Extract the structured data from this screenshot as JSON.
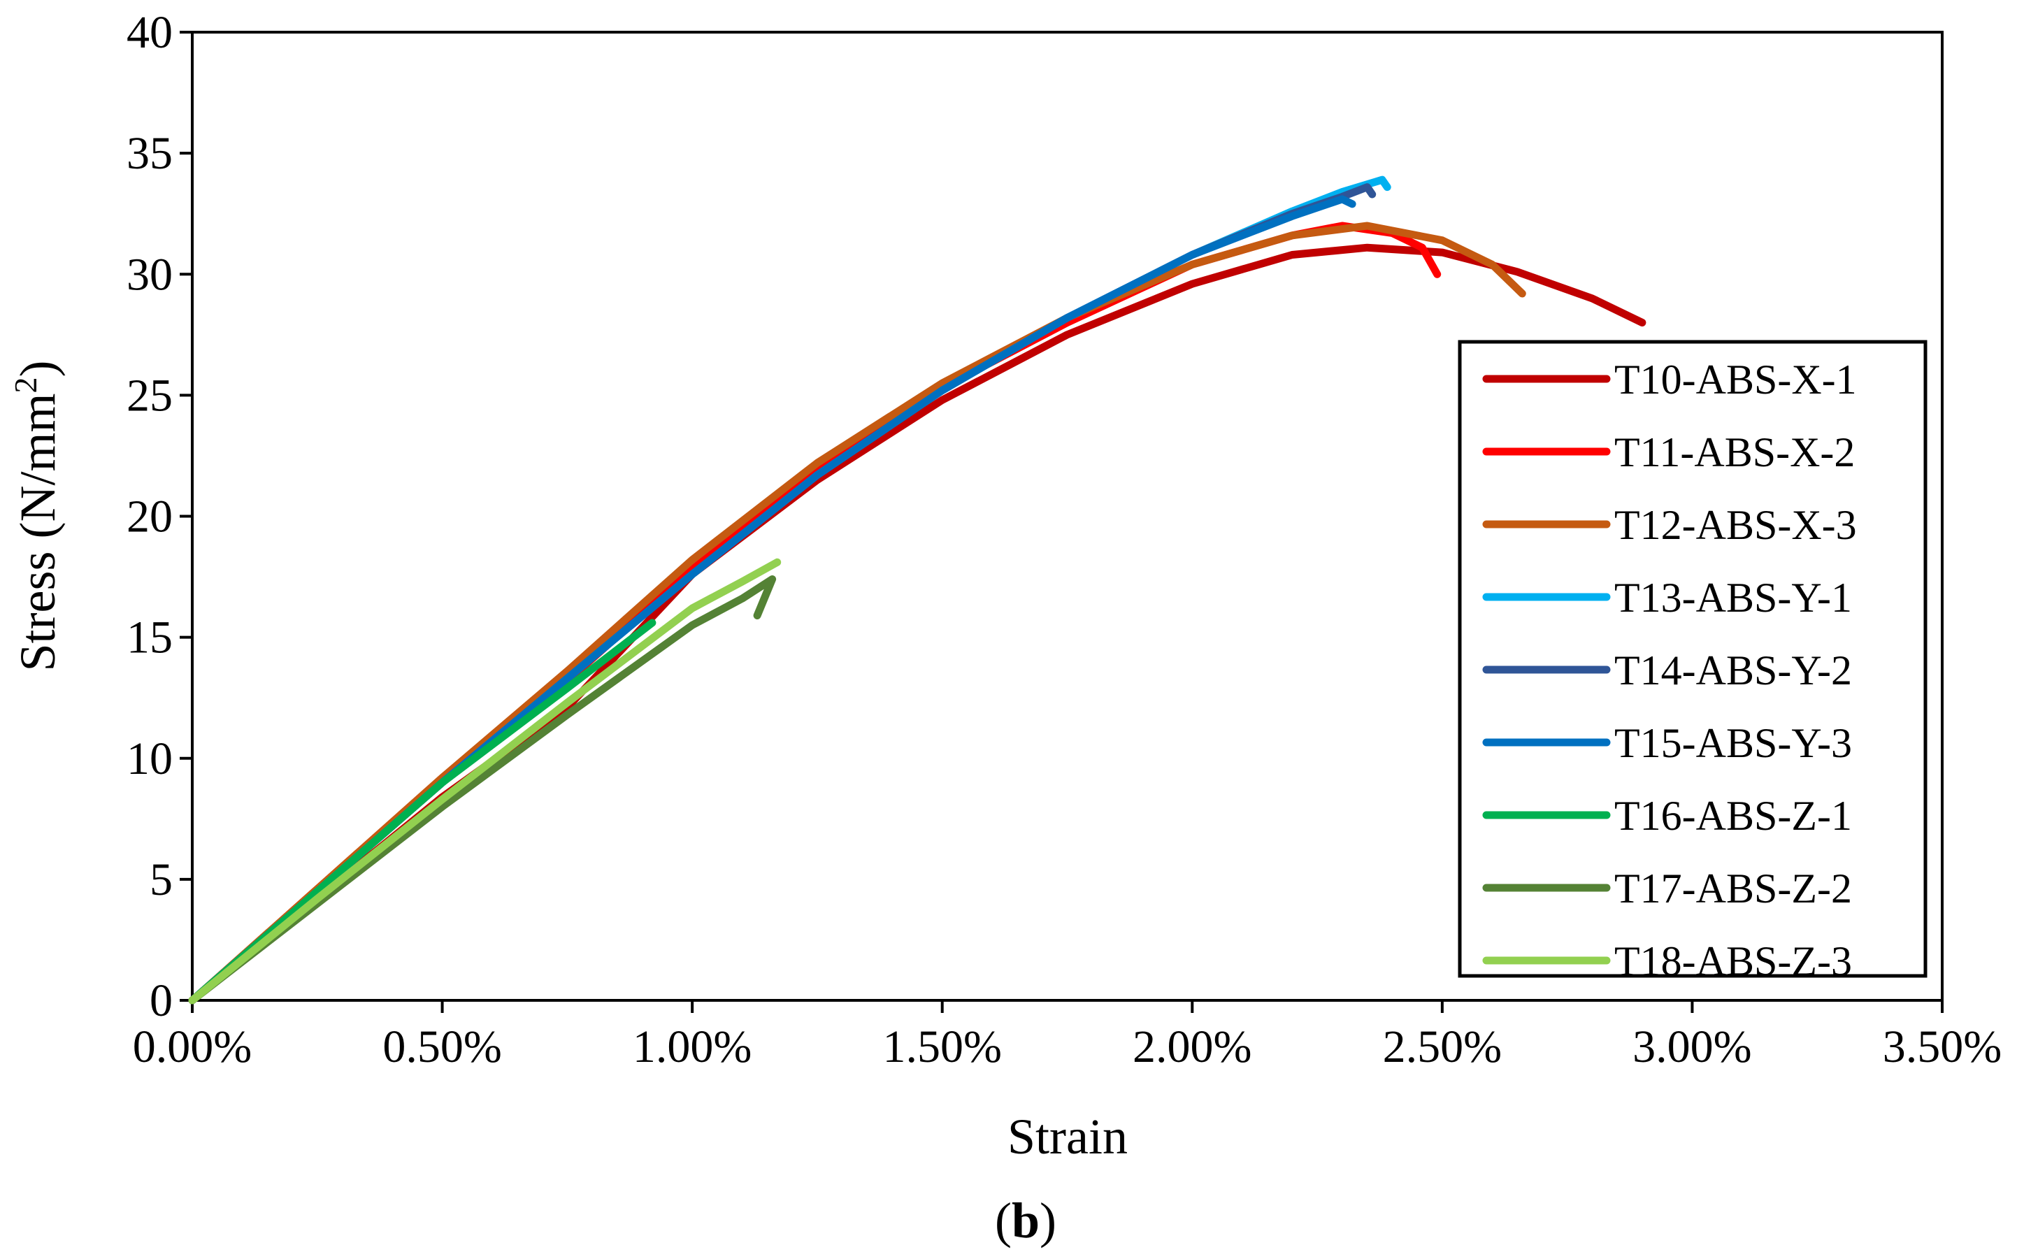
{
  "chart_data": {
    "type": "line",
    "title": "",
    "xlabel": "Strain",
    "ylabel": "Stress (N/mm²)",
    "xlim": [
      0.0,
      3.5
    ],
    "ylim": [
      0,
      40
    ],
    "x_unit": "percent",
    "x_ticks": [
      "0.00%",
      "0.50%",
      "1.00%",
      "1.50%",
      "2.00%",
      "2.50%",
      "3.00%",
      "3.50%"
    ],
    "y_ticks": [
      "0",
      "5",
      "10",
      "15",
      "20",
      "25",
      "30",
      "35",
      "40"
    ],
    "grid": false,
    "legend_position": "right",
    "caption": {
      "open": "(",
      "letter": "b",
      "close": ")"
    },
    "series": [
      {
        "name": "T10-ABS-X-1",
        "color": "#C00000",
        "points": [
          [
            0,
            0
          ],
          [
            0.25,
            4.2
          ],
          [
            0.5,
            8.4
          ],
          [
            0.75,
            12.1
          ],
          [
            1.0,
            17.6
          ],
          [
            1.25,
            21.5
          ],
          [
            1.5,
            24.8
          ],
          [
            1.75,
            27.5
          ],
          [
            2.0,
            29.6
          ],
          [
            2.2,
            30.8
          ],
          [
            2.35,
            31.1
          ],
          [
            2.5,
            30.9
          ],
          [
            2.65,
            30.1
          ],
          [
            2.8,
            29.0
          ],
          [
            2.9,
            28.0
          ]
        ]
      },
      {
        "name": "T11-ABS-X-2",
        "color": "#FF0000",
        "points": [
          [
            0,
            0
          ],
          [
            0.25,
            4.5
          ],
          [
            0.5,
            9.0
          ],
          [
            0.75,
            13.2
          ],
          [
            1.0,
            17.8
          ],
          [
            1.25,
            21.9
          ],
          [
            1.5,
            25.3
          ],
          [
            1.75,
            28.0
          ],
          [
            2.0,
            30.4
          ],
          [
            2.2,
            31.6
          ],
          [
            2.3,
            32.0
          ],
          [
            2.4,
            31.7
          ],
          [
            2.46,
            31.1
          ],
          [
            2.49,
            30.0
          ]
        ]
      },
      {
        "name": "T12-ABS-X-3",
        "color": "#C55A11",
        "points": [
          [
            0,
            0
          ],
          [
            0.25,
            4.6
          ],
          [
            0.5,
            9.2
          ],
          [
            0.75,
            13.6
          ],
          [
            1.0,
            18.2
          ],
          [
            1.25,
            22.2
          ],
          [
            1.5,
            25.5
          ],
          [
            1.75,
            28.2
          ],
          [
            2.0,
            30.4
          ],
          [
            2.2,
            31.6
          ],
          [
            2.35,
            32.0
          ],
          [
            2.5,
            31.4
          ],
          [
            2.6,
            30.4
          ],
          [
            2.66,
            29.2
          ]
        ]
      },
      {
        "name": "T13-ABS-Y-1",
        "color": "#00B0F0",
        "points": [
          [
            0,
            0
          ],
          [
            0.25,
            4.5
          ],
          [
            0.5,
            9.0
          ],
          [
            0.75,
            13.3
          ],
          [
            1.0,
            17.6
          ],
          [
            1.25,
            21.7
          ],
          [
            1.5,
            25.2
          ],
          [
            1.75,
            28.2
          ],
          [
            2.0,
            30.8
          ],
          [
            2.2,
            32.6
          ],
          [
            2.3,
            33.4
          ],
          [
            2.38,
            33.9
          ],
          [
            2.39,
            33.6
          ]
        ]
      },
      {
        "name": "T14-ABS-Y-2",
        "color": "#2F5597",
        "points": [
          [
            0,
            0
          ],
          [
            0.25,
            4.5
          ],
          [
            0.5,
            9.0
          ],
          [
            0.75,
            13.3
          ],
          [
            1.0,
            17.6
          ],
          [
            1.25,
            21.7
          ],
          [
            1.5,
            25.2
          ],
          [
            1.75,
            28.2
          ],
          [
            2.0,
            30.8
          ],
          [
            2.2,
            32.5
          ],
          [
            2.3,
            33.2
          ],
          [
            2.35,
            33.6
          ],
          [
            2.36,
            33.3
          ]
        ]
      },
      {
        "name": "T15-ABS-Y-3",
        "color": "#0070C0",
        "points": [
          [
            0,
            0
          ],
          [
            0.25,
            4.5
          ],
          [
            0.5,
            9.0
          ],
          [
            0.75,
            13.3
          ],
          [
            1.0,
            17.6
          ],
          [
            1.25,
            21.7
          ],
          [
            1.5,
            25.2
          ],
          [
            1.75,
            28.2
          ],
          [
            2.0,
            30.8
          ],
          [
            2.2,
            32.4
          ],
          [
            2.3,
            33.1
          ],
          [
            2.32,
            32.9
          ]
        ]
      },
      {
        "name": "T16-ABS-Z-1",
        "color": "#00B050",
        "points": [
          [
            0,
            0
          ],
          [
            0.25,
            4.5
          ],
          [
            0.5,
            9.0
          ],
          [
            0.75,
            12.9
          ],
          [
            0.92,
            15.6
          ]
        ]
      },
      {
        "name": "T17-ABS-Z-2",
        "color": "#548235",
        "points": [
          [
            0,
            0
          ],
          [
            0.25,
            4.0
          ],
          [
            0.5,
            8.0
          ],
          [
            0.75,
            11.8
          ],
          [
            1.0,
            15.5
          ],
          [
            1.1,
            16.6
          ],
          [
            1.16,
            17.4
          ],
          [
            1.13,
            15.9
          ]
        ]
      },
      {
        "name": "T18-ABS-Z-3",
        "color": "#92D050",
        "points": [
          [
            0,
            0
          ],
          [
            0.25,
            4.2
          ],
          [
            0.5,
            8.3
          ],
          [
            0.75,
            12.3
          ],
          [
            1.0,
            16.2
          ],
          [
            1.1,
            17.3
          ],
          [
            1.17,
            18.1
          ]
        ]
      }
    ]
  }
}
